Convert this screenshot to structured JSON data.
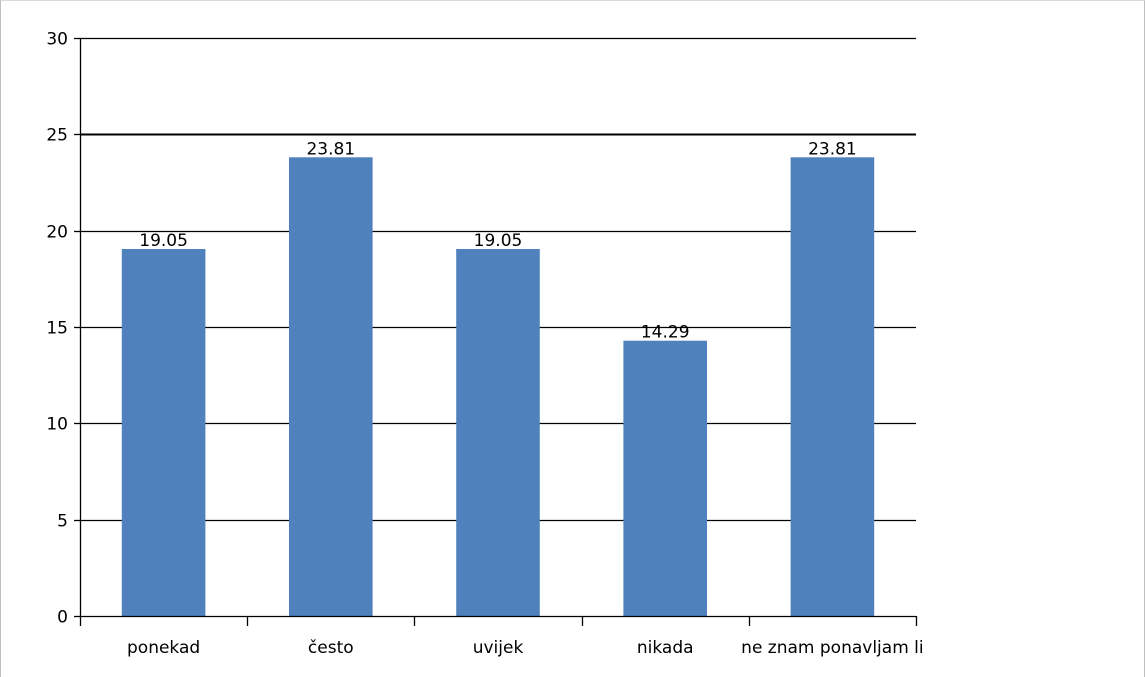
{
  "chart_data": {
    "type": "bar",
    "categories": [
      "ponekad",
      "često",
      "uvijek",
      "nikada",
      "ne znam ponavljam li"
    ],
    "values": [
      19.05,
      23.81,
      19.05,
      14.29,
      23.81
    ],
    "data_labels": [
      "19.05",
      "23.81",
      "19.05",
      "14.29",
      "23.81"
    ],
    "title": "",
    "xlabel": "",
    "ylabel": "",
    "ylim": [
      0,
      30
    ],
    "yticks": [
      0,
      5,
      10,
      15,
      20,
      25,
      30
    ],
    "grid": true,
    "legend": "none",
    "bar_color": "#4f81bd",
    "grid_color": "#000000"
  }
}
